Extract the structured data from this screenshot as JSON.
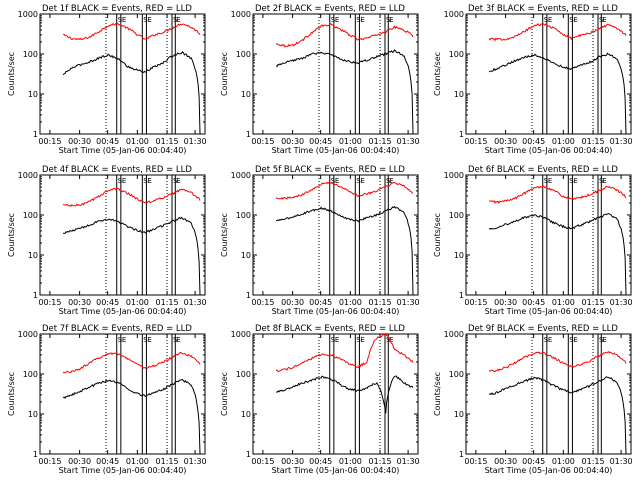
{
  "chart_data": [
    {
      "type": "line",
      "title": "Det 1f BLACK = Events, RED = LLD",
      "xlabel": "Start Time (05-Jan-06 00:04:40)",
      "ylabel": "Counts/sec",
      "yscale": "log",
      "ylim": [
        1,
        1000
      ],
      "x_ticks": [
        "00:15",
        "00:30",
        "00:45",
        "01:00",
        "01:15",
        "01:30"
      ],
      "y_ticks": [
        "1",
        "10",
        "100",
        "1000"
      ],
      "markers": [
        "S",
        "E",
        "S",
        "E",
        "S",
        "E"
      ],
      "series": [
        {
          "color": "#ff0000",
          "values": [
            300,
            240,
            230,
            270,
            370,
            520,
            570,
            450,
            320,
            230,
            300,
            350,
            450,
            580,
            470,
            320
          ]
        },
        {
          "color": "#000000",
          "values": [
            30,
            45,
            55,
            65,
            80,
            95,
            75,
            50,
            40,
            35,
            48,
            60,
            90,
            110,
            80,
            0
          ]
        }
      ]
    },
    {
      "type": "line",
      "title": "Det 2f BLACK = Events, RED = LLD",
      "xlabel": "Start Time (05-Jan-06 00:04:40)",
      "ylabel": "Counts/sec",
      "yscale": "log",
      "ylim": [
        1,
        1000
      ],
      "x_ticks": [
        "00:15",
        "00:30",
        "00:45",
        "01:00",
        "01:15",
        "01:30"
      ],
      "y_ticks": [
        "1",
        "10",
        "100",
        "1000"
      ],
      "markers": [
        "S",
        "E",
        "S",
        "E",
        "S",
        "E"
      ],
      "series": [
        {
          "color": "#ff0000",
          "values": [
            180,
            160,
            170,
            230,
            350,
            500,
            540,
            420,
            300,
            230,
            250,
            300,
            360,
            470,
            400,
            280
          ]
        },
        {
          "color": "#000000",
          "values": [
            50,
            60,
            70,
            80,
            100,
            110,
            95,
            75,
            65,
            60,
            70,
            85,
            100,
            120,
            90,
            0
          ]
        }
      ]
    },
    {
      "type": "line",
      "title": "Det 3f BLACK = Events, RED = LLD",
      "xlabel": "Start Time (05-Jan-06 00:04:40)",
      "ylabel": "Counts/sec",
      "yscale": "log",
      "ylim": [
        1,
        1000
      ],
      "x_ticks": [
        "00:15",
        "00:30",
        "00:45",
        "01:00",
        "01:15",
        "01:30"
      ],
      "y_ticks": [
        "1",
        "10",
        "100",
        "1000"
      ],
      "markers": [
        "S",
        "E",
        "S",
        "E",
        "S",
        "E"
      ],
      "series": [
        {
          "color": "#ff0000",
          "values": [
            240,
            230,
            240,
            280,
            380,
            520,
            560,
            450,
            320,
            250,
            290,
            330,
            420,
            540,
            440,
            300
          ]
        },
        {
          "color": "#000000",
          "values": [
            35,
            45,
            55,
            70,
            85,
            95,
            80,
            60,
            48,
            42,
            52,
            62,
            82,
            100,
            75,
            0
          ]
        }
      ]
    },
    {
      "type": "line",
      "title": "Det 4f BLACK = Events, RED = LLD",
      "xlabel": "Start Time (05-Jan-06 00:04:40)",
      "ylabel": "Counts/sec",
      "yscale": "log",
      "ylim": [
        1,
        1000
      ],
      "x_ticks": [
        "00:15",
        "00:30",
        "00:45",
        "01:00",
        "01:15",
        "01:30"
      ],
      "y_ticks": [
        "1",
        "10",
        "100",
        "1000"
      ],
      "markers": [
        "S",
        "E",
        "S",
        "E",
        "S",
        "E"
      ],
      "series": [
        {
          "color": "#ff0000",
          "values": [
            180,
            170,
            180,
            220,
            300,
            420,
            450,
            360,
            260,
            200,
            230,
            270,
            340,
            430,
            360,
            240
          ]
        },
        {
          "color": "#000000",
          "values": [
            35,
            40,
            48,
            58,
            70,
            80,
            68,
            52,
            42,
            36,
            45,
            55,
            70,
            85,
            65,
            0
          ]
        }
      ]
    },
    {
      "type": "line",
      "title": "Det 5f BLACK = Events, RED = LLD",
      "xlabel": "Start Time (05-Jan-06 00:04:40)",
      "ylabel": "Counts/sec",
      "yscale": "log",
      "ylim": [
        1,
        1000
      ],
      "x_ticks": [
        "00:15",
        "00:30",
        "00:45",
        "01:00",
        "01:15",
        "01:30"
      ],
      "y_ticks": [
        "1",
        "10",
        "100",
        "1000"
      ],
      "markers": [
        "S",
        "E",
        "S",
        "E",
        "S",
        "E"
      ],
      "series": [
        {
          "color": "#ff0000",
          "values": [
            270,
            260,
            280,
            330,
            450,
            600,
            650,
            520,
            380,
            300,
            340,
            400,
            500,
            640,
            520,
            360
          ]
        },
        {
          "color": "#000000",
          "values": [
            70,
            80,
            90,
            110,
            130,
            150,
            125,
            95,
            80,
            72,
            85,
            100,
            125,
            160,
            115,
            0
          ]
        }
      ]
    },
    {
      "type": "line",
      "title": "Det 6f BLACK = Events, RED = LLD",
      "xlabel": "Start Time (05-Jan-06 00:04:40)",
      "ylabel": "Counts/sec",
      "yscale": "log",
      "ylim": [
        1,
        1000
      ],
      "x_ticks": [
        "00:15",
        "00:30",
        "00:45",
        "01:00",
        "01:15",
        "01:30"
      ],
      "y_ticks": [
        "1",
        "10",
        "100",
        "1000"
      ],
      "markers": [
        "S",
        "E",
        "S",
        "E",
        "S",
        "E"
      ],
      "series": [
        {
          "color": "#ff0000",
          "values": [
            220,
            210,
            230,
            270,
            360,
            480,
            520,
            420,
            300,
            240,
            270,
            320,
            400,
            510,
            420,
            280
          ]
        },
        {
          "color": "#000000",
          "values": [
            45,
            50,
            60,
            72,
            88,
            100,
            85,
            65,
            52,
            46,
            56,
            68,
            86,
            105,
            80,
            0
          ]
        }
      ]
    },
    {
      "type": "line",
      "title": "Det 7f BLACK = Events, RED = LLD",
      "xlabel": "Start Time (05-Jan-06 00:04:40)",
      "ylabel": "Counts/sec",
      "yscale": "log",
      "ylim": [
        1,
        1000
      ],
      "x_ticks": [
        "00:15",
        "00:30",
        "00:45",
        "01:00",
        "01:15",
        "01:30"
      ],
      "y_ticks": [
        "1",
        "10",
        "100",
        "1000"
      ],
      "markers": [
        "S",
        "E",
        "S",
        "E",
        "S",
        "E"
      ],
      "series": [
        {
          "color": "#ff0000",
          "values": [
            110,
            115,
            140,
            190,
            260,
            330,
            320,
            250,
            180,
            140,
            160,
            200,
            260,
            340,
            280,
            180
          ]
        },
        {
          "color": "#000000",
          "values": [
            25,
            30,
            38,
            48,
            60,
            70,
            60,
            45,
            33,
            28,
            34,
            42,
            55,
            72,
            55,
            0
          ]
        }
      ]
    },
    {
      "type": "line",
      "title": "Det 8f BLACK = Events, RED = LLD",
      "xlabel": "Start Time (05-Jan-06 00:04:40)",
      "ylabel": "Counts/sec",
      "yscale": "log",
      "ylim": [
        1,
        1000
      ],
      "x_ticks": [
        "00:15",
        "00:30",
        "00:45",
        "01:00",
        "01:15",
        "01:30"
      ],
      "y_ticks": [
        "1",
        "10",
        "100",
        "1000"
      ],
      "markers": [
        "S",
        "E",
        "S",
        "E",
        "S",
        "E"
      ],
      "series": [
        {
          "color": "#ff0000",
          "values": [
            120,
            130,
            150,
            190,
            250,
            310,
            300,
            240,
            180,
            150,
            200,
            800,
            1000,
            400,
            300,
            200
          ]
        },
        {
          "color": "#000000",
          "values": [
            35,
            40,
            50,
            60,
            72,
            85,
            75,
            55,
            42,
            38,
            45,
            60,
            10,
            90,
            60,
            45
          ]
        }
      ]
    },
    {
      "type": "line",
      "title": "Det 9f BLACK = Events, RED = LLD",
      "xlabel": "Start Time (05-Jan-06 00:04:40)",
      "ylabel": "Counts/sec",
      "yscale": "log",
      "ylim": [
        1,
        1000
      ],
      "x_ticks": [
        "00:15",
        "00:30",
        "00:45",
        "01:00",
        "01:15",
        "01:30"
      ],
      "y_ticks": [
        "1",
        "10",
        "100",
        "1000"
      ],
      "markers": [
        "S",
        "E",
        "S",
        "E",
        "S",
        "E"
      ],
      "series": [
        {
          "color": "#ff0000",
          "values": [
            120,
            125,
            150,
            200,
            270,
            340,
            330,
            260,
            190,
            150,
            170,
            210,
            280,
            360,
            300,
            190
          ]
        },
        {
          "color": "#000000",
          "values": [
            30,
            35,
            45,
            55,
            68,
            80,
            70,
            52,
            40,
            34,
            40,
            50,
            65,
            85,
            62,
            0
          ]
        }
      ]
    }
  ]
}
